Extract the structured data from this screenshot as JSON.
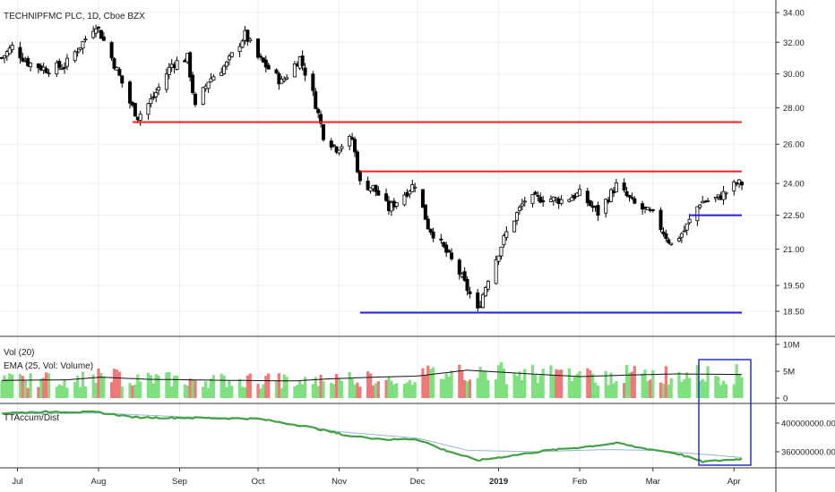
{
  "chart_data": [
    {
      "type": "candlestick",
      "title": "TECHNIPFMC PLC, 1D, Cboe BZX",
      "y_ticks": [
        "34.00",
        "32.00",
        "30.00",
        "28.00",
        "26.00",
        "24.00",
        "22.50",
        "21.00",
        "19.50",
        "18.50"
      ],
      "x_ticks": [
        "Jul",
        "Aug",
        "Sep",
        "Oct",
        "Nov",
        "Dec",
        "2019",
        "Feb",
        "Mar",
        "Apr"
      ],
      "ohlc_path": [
        [
          "2018-06-25",
          31.0
        ],
        [
          "2018-06-29",
          31.7
        ],
        [
          "2018-07-05",
          30.7
        ],
        [
          "2018-07-12",
          30.3
        ],
        [
          "2018-07-19",
          30.5
        ],
        [
          "2018-07-26",
          32.0
        ],
        [
          "2018-07-31",
          33.2
        ],
        [
          "2018-08-06",
          31.0
        ],
        [
          "2018-08-13",
          28.3
        ],
        [
          "2018-08-16",
          27.5
        ],
        [
          "2018-08-22",
          28.6
        ],
        [
          "2018-08-29",
          30.6
        ],
        [
          "2018-09-04",
          31.0
        ],
        [
          "2018-09-07",
          28.0
        ],
        [
          "2018-09-12",
          29.6
        ],
        [
          "2018-09-19",
          30.6
        ],
        [
          "2018-09-26",
          32.5
        ],
        [
          "2018-10-01",
          31.0
        ],
        [
          "2018-10-10",
          29.5
        ],
        [
          "2018-10-17",
          31.0
        ],
        [
          "2018-10-22",
          28.8
        ],
        [
          "2018-10-26",
          26.5
        ],
        [
          "2018-10-31",
          25.8
        ],
        [
          "2018-11-06",
          26.3
        ],
        [
          "2018-11-09",
          24.0
        ],
        [
          "2018-11-14",
          23.8
        ],
        [
          "2018-11-20",
          22.8
        ],
        [
          "2018-11-26",
          23.5
        ],
        [
          "2018-11-30",
          24.0
        ],
        [
          "2018-12-05",
          22.0
        ],
        [
          "2018-12-10",
          21.2
        ],
        [
          "2018-12-17",
          20.0
        ],
        [
          "2018-12-24",
          18.5
        ],
        [
          "2018-12-28",
          19.8
        ],
        [
          "2019-01-04",
          21.7
        ],
        [
          "2019-01-11",
          23.2
        ],
        [
          "2019-01-18",
          23.3
        ],
        [
          "2019-01-25",
          23.2
        ],
        [
          "2019-02-01",
          23.5
        ],
        [
          "2019-02-08",
          22.6
        ],
        [
          "2019-02-15",
          23.9
        ],
        [
          "2019-02-22",
          23.0
        ],
        [
          "2019-03-01",
          22.5
        ],
        [
          "2019-03-08",
          21.2
        ],
        [
          "2019-03-13",
          21.8
        ],
        [
          "2019-03-19",
          23.1
        ],
        [
          "2019-03-26",
          23.3
        ],
        [
          "2019-04-02",
          24.0
        ]
      ],
      "horizontal_lines": [
        {
          "y": 27.2,
          "from": "2018-08-14",
          "to": "2019-04-04",
          "color": "#ee2222"
        },
        {
          "y": 24.6,
          "from": "2018-11-09",
          "to": "2019-04-04",
          "color": "#ee2222"
        },
        {
          "y": 18.45,
          "from": "2018-11-09",
          "to": "2019-04-04",
          "color": "#2222dd"
        },
        {
          "y": 22.5,
          "from": "2019-03-15",
          "to": "2019-04-04",
          "color": "#2222dd"
        }
      ]
    },
    {
      "type": "bar",
      "title": "Vol (20)",
      "series": [
        {
          "name": "EMA (25, Vol: Volume)",
          "type": "line",
          "color": "#111111",
          "values_path": [
            [
              "2018-06-25",
              3300000.0
            ],
            [
              "2018-07-20",
              3400000.0
            ],
            [
              "2018-08-02",
              3900000.0
            ],
            [
              "2018-08-20",
              3500000.0
            ],
            [
              "2018-09-20",
              3300000.0
            ],
            [
              "2018-10-15",
              3200000.0
            ],
            [
              "2018-10-29",
              3600000.0
            ],
            [
              "2018-11-15",
              3900000.0
            ],
            [
              "2018-12-01",
              4100000.0
            ],
            [
              "2018-12-20",
              5200000.0
            ],
            [
              "2019-01-10",
              4600000.0
            ],
            [
              "2019-02-01",
              4000000.0
            ],
            [
              "2019-02-20",
              4300000.0
            ],
            [
              "2019-03-10",
              4500000.0
            ],
            [
              "2019-04-04",
              4400000.0
            ]
          ]
        }
      ],
      "up_color": "#7ee07e",
      "down_color": "#f07878",
      "y_ticks": [
        "10M",
        "5M",
        "0"
      ],
      "box_color": "#2233cc"
    },
    {
      "type": "line",
      "title": "TTAccum/Dist",
      "y_ticks": [
        "400000000.00",
        "360000000.00"
      ],
      "series": [
        {
          "color": "#44a044",
          "values_path": [
            [
              "2018-06-25",
              414000000.0
            ],
            [
              "2018-07-15",
              416000000.0
            ],
            [
              "2018-08-01",
              415000000.0
            ],
            [
              "2018-08-15",
              408000000.0
            ],
            [
              "2018-09-15",
              407000000.0
            ],
            [
              "2018-10-01",
              406000000.0
            ],
            [
              "2018-10-20",
              395000000.0
            ],
            [
              "2018-11-05",
              382000000.0
            ],
            [
              "2018-11-20",
              377000000.0
            ],
            [
              "2018-12-01",
              378000000.0
            ],
            [
              "2018-12-10",
              364000000.0
            ],
            [
              "2018-12-24",
              348000000.0
            ],
            [
              "2019-01-05",
              354000000.0
            ],
            [
              "2019-01-20",
              362000000.0
            ],
            [
              "2019-02-01",
              366000000.0
            ],
            [
              "2019-02-15",
              372000000.0
            ],
            [
              "2019-02-25",
              365000000.0
            ],
            [
              "2019-03-10",
              358000000.0
            ],
            [
              "2019-03-20",
              346000000.0
            ],
            [
              "2019-04-04",
              350000000.0
            ]
          ]
        },
        {
          "color": "#8fb4d4",
          "values_path": [
            [
              "2018-06-25",
              413000000.0
            ],
            [
              "2018-08-01",
              414000000.0
            ],
            [
              "2018-09-01",
              409000000.0
            ],
            [
              "2018-10-01",
              406000000.0
            ],
            [
              "2018-11-01",
              388000000.0
            ],
            [
              "2018-12-01",
              379000000.0
            ],
            [
              "2018-12-20",
              362000000.0
            ],
            [
              "2019-01-15",
              360000000.0
            ],
            [
              "2019-02-10",
              363000000.0
            ],
            [
              "2019-03-01",
              362000000.0
            ],
            [
              "2019-04-04",
              352000000.0
            ]
          ]
        }
      ]
    }
  ]
}
